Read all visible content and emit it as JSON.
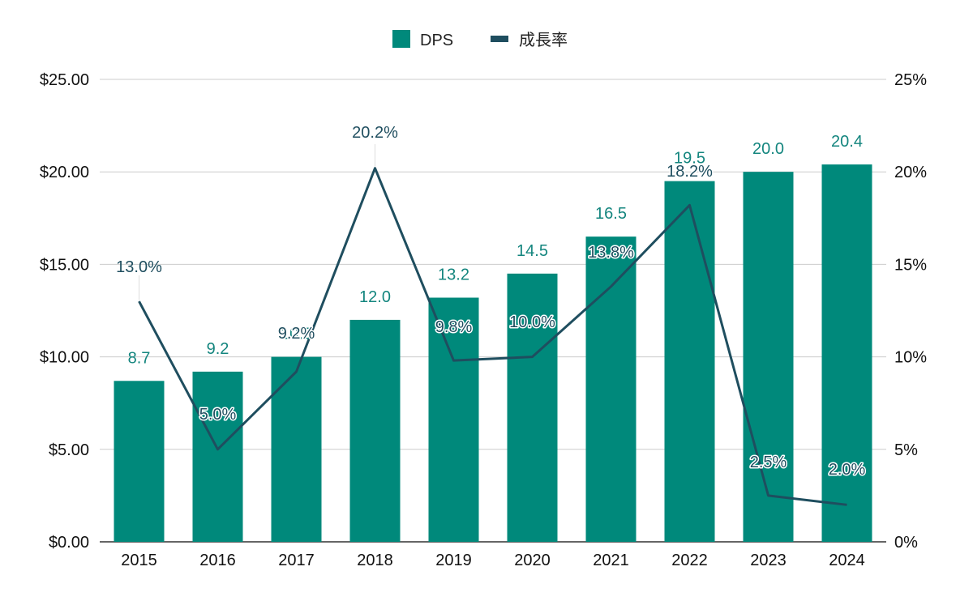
{
  "legend": {
    "bar_label": "DPS",
    "line_label": "成長率"
  },
  "colors": {
    "bar": "#00897b",
    "line": "#1f4e5f",
    "grid": "#cccccc",
    "bar_label": "#13857e"
  },
  "chart_data": {
    "type": "bar",
    "categories": [
      "2015",
      "2016",
      "2017",
      "2018",
      "2019",
      "2020",
      "2021",
      "2022",
      "2023",
      "2024"
    ],
    "series": [
      {
        "name": "DPS",
        "type": "bar",
        "axis": "left",
        "values": [
          8.7,
          9.2,
          10.0,
          12.0,
          13.2,
          14.5,
          16.5,
          19.5,
          20.0,
          20.4
        ],
        "data_labels": [
          "8.7",
          "9.2",
          "10.0",
          "12.0",
          "13.2",
          "14.5",
          "16.5",
          "19.5",
          "20.0",
          "20.4"
        ]
      },
      {
        "name": "成長率",
        "type": "line",
        "axis": "right",
        "values": [
          13.0,
          5.0,
          9.2,
          20.2,
          9.8,
          10.0,
          13.8,
          18.2,
          2.5,
          2.0
        ],
        "data_labels": [
          "13.0%",
          "5.0%",
          "9.2%",
          "20.2%",
          "9.8%",
          "10.0%",
          "13.8%",
          "18.2%",
          "2.5%",
          "2.0%"
        ]
      }
    ],
    "left_axis": {
      "ylim": [
        0,
        25
      ],
      "ticks": [
        "$0.00",
        "$5.00",
        "$10.00",
        "$15.00",
        "$20.00",
        "$25.00"
      ]
    },
    "right_axis": {
      "ylim": [
        0,
        25
      ],
      "ticks": [
        "0%",
        "5%",
        "10%",
        "15%",
        "20%",
        "25%"
      ]
    },
    "grid": true,
    "legend_position": "top-center"
  }
}
